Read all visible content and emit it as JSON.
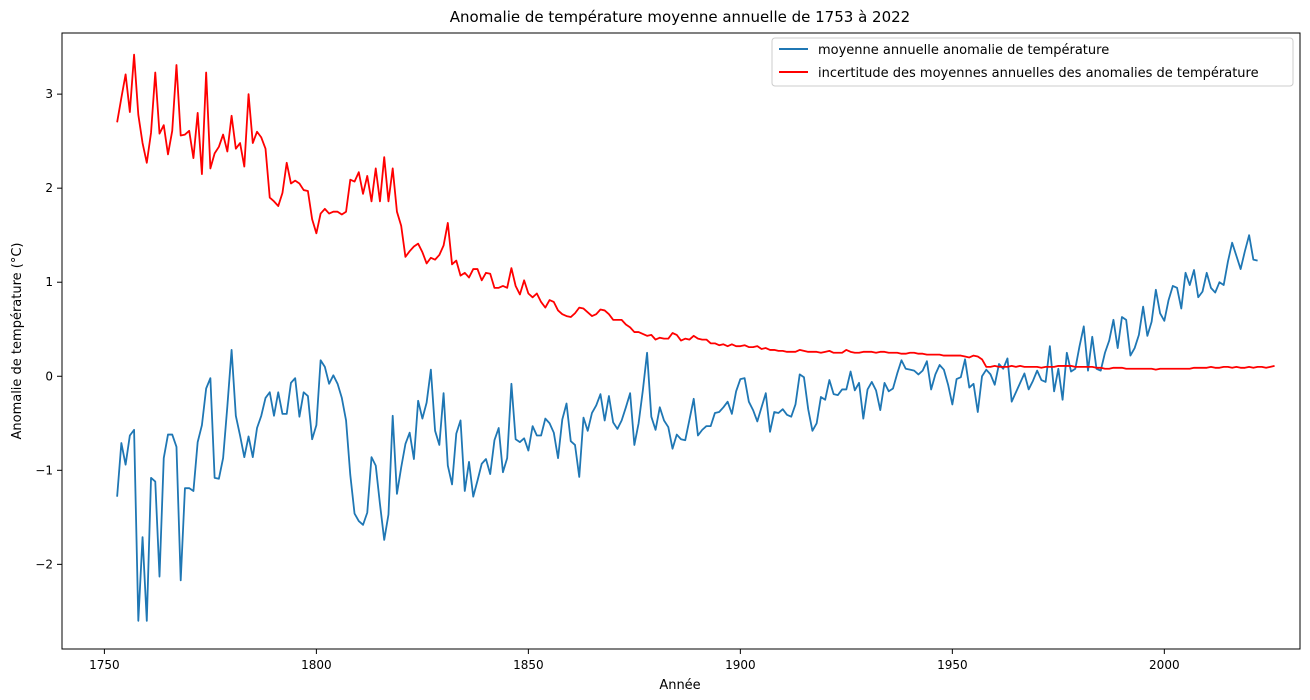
{
  "chart_data": {
    "type": "line",
    "title": "Anomalie de température moyenne annuelle de 1753 à 2022",
    "xlabel": "Année",
    "ylabel": "Anomalie de température (°C)",
    "xlim": [
      1740,
      2032
    ],
    "ylim": [
      -2.9,
      3.65
    ],
    "xticks": [
      1750,
      1800,
      1850,
      1900,
      1950,
      2000
    ],
    "yticks": [
      -2,
      -1,
      0,
      1,
      2,
      3
    ],
    "ytick_labels": [
      "−2",
      "−1",
      "0",
      "1",
      "2",
      "3"
    ],
    "grid": false,
    "legend_position": "top-right",
    "x_start": 1753,
    "series": [
      {
        "name": "moyenne annuelle anomalie de température",
        "color": "#1f77b4",
        "values": [
          -1.28,
          -0.71,
          -0.94,
          -0.63,
          -0.57,
          -2.6,
          -1.71,
          -2.6,
          -1.08,
          -1.12,
          -2.13,
          -0.87,
          -0.62,
          -0.62,
          -0.75,
          -2.17,
          -1.19,
          -1.19,
          -1.22,
          -0.7,
          -0.52,
          -0.13,
          -0.02,
          -1.08,
          -1.09,
          -0.87,
          -0.32,
          0.28,
          -0.42,
          -0.63,
          -0.86,
          -0.64,
          -0.86,
          -0.55,
          -0.42,
          -0.23,
          -0.17,
          -0.42,
          -0.17,
          -0.4,
          -0.4,
          -0.07,
          -0.02,
          -0.43,
          -0.17,
          -0.21,
          -0.67,
          -0.52,
          0.17,
          0.1,
          -0.08,
          0.01,
          -0.08,
          -0.23,
          -0.47,
          -1.05,
          -1.46,
          -1.54,
          -1.58,
          -1.45,
          -0.86,
          -0.95,
          -1.36,
          -1.74,
          -1.47,
          -0.42,
          -1.25,
          -0.97,
          -0.72,
          -0.6,
          -0.88,
          -0.26,
          -0.45,
          -0.28,
          0.07,
          -0.58,
          -0.73,
          -0.18,
          -0.95,
          -1.15,
          -0.61,
          -0.47,
          -1.22,
          -0.91,
          -1.28,
          -1.11,
          -0.93,
          -0.88,
          -1.04,
          -0.68,
          -0.55,
          -1.02,
          -0.87,
          -0.08,
          -0.67,
          -0.7,
          -0.66,
          -0.79,
          -0.53,
          -0.63,
          -0.63,
          -0.45,
          -0.5,
          -0.6,
          -0.87,
          -0.46,
          -0.29,
          -0.69,
          -0.73,
          -1.07,
          -0.44,
          -0.58,
          -0.39,
          -0.31,
          -0.19,
          -0.47,
          -0.21,
          -0.49,
          -0.56,
          -0.47,
          -0.33,
          -0.18,
          -0.73,
          -0.5,
          -0.15,
          0.25,
          -0.43,
          -0.57,
          -0.33,
          -0.47,
          -0.54,
          -0.77,
          -0.62,
          -0.67,
          -0.68,
          -0.46,
          -0.24,
          -0.63,
          -0.57,
          -0.53,
          -0.53,
          -0.39,
          -0.38,
          -0.33,
          -0.27,
          -0.4,
          -0.16,
          -0.03,
          -0.02,
          -0.27,
          -0.36,
          -0.48,
          -0.33,
          -0.18,
          -0.59,
          -0.38,
          -0.39,
          -0.35,
          -0.41,
          -0.43,
          -0.3,
          0.02,
          -0.01,
          -0.35,
          -0.58,
          -0.5,
          -0.22,
          -0.25,
          -0.04,
          -0.19,
          -0.2,
          -0.14,
          -0.14,
          0.05,
          -0.15,
          -0.07,
          -0.45,
          -0.14,
          -0.06,
          -0.15,
          -0.36,
          -0.07,
          -0.16,
          -0.13,
          0.03,
          0.17,
          0.08,
          0.07,
          0.06,
          0.02,
          0.06,
          0.16,
          -0.14,
          0.02,
          0.12,
          0.07,
          -0.09,
          -0.3,
          -0.03,
          -0.01,
          0.18,
          -0.12,
          -0.08,
          -0.38,
          0.0,
          0.07,
          0.02,
          -0.09,
          0.13,
          0.08,
          0.19,
          -0.27,
          -0.17,
          -0.07,
          0.03,
          -0.14,
          -0.05,
          0.06,
          -0.04,
          -0.06,
          0.32,
          -0.16,
          0.08,
          -0.25,
          0.25,
          0.05,
          0.08,
          0.32,
          0.53,
          0.06,
          0.42,
          0.08,
          0.06,
          0.25,
          0.38,
          0.6,
          0.3,
          0.63,
          0.6,
          0.22,
          0.3,
          0.44,
          0.74,
          0.43,
          0.58,
          0.92,
          0.67,
          0.59,
          0.81,
          0.96,
          0.94,
          0.72,
          1.1,
          0.97,
          1.13,
          0.84,
          0.9,
          1.1,
          0.94,
          0.89,
          1.0,
          0.97,
          1.22,
          1.42,
          1.28,
          1.14,
          1.33,
          1.5,
          1.24,
          1.23
        ]
      },
      {
        "name": "incertitude des moyennes annuelles des anomalies de température",
        "color": "#ff0000",
        "values": [
          2.7,
          2.96,
          3.21,
          2.81,
          3.42,
          2.78,
          2.48,
          2.27,
          2.59,
          3.23,
          2.58,
          2.67,
          2.36,
          2.61,
          3.31,
          2.56,
          2.57,
          2.61,
          2.32,
          2.8,
          2.15,
          3.23,
          2.21,
          2.37,
          2.44,
          2.57,
          2.39,
          2.77,
          2.42,
          2.48,
          2.23,
          3.0,
          2.48,
          2.6,
          2.54,
          2.42,
          1.9,
          1.86,
          1.81,
          1.95,
          2.27,
          2.05,
          2.08,
          2.05,
          1.98,
          1.97,
          1.67,
          1.52,
          1.73,
          1.78,
          1.73,
          1.75,
          1.75,
          1.72,
          1.75,
          2.09,
          2.07,
          2.17,
          1.94,
          2.13,
          1.86,
          2.21,
          1.86,
          2.33,
          1.86,
          2.21,
          1.75,
          1.6,
          1.27,
          1.33,
          1.38,
          1.41,
          1.32,
          1.2,
          1.26,
          1.24,
          1.29,
          1.39,
          1.63,
          1.19,
          1.23,
          1.07,
          1.1,
          1.05,
          1.14,
          1.14,
          1.02,
          1.1,
          1.09,
          0.94,
          0.94,
          0.96,
          0.94,
          1.15,
          0.96,
          0.87,
          1.02,
          0.88,
          0.84,
          0.88,
          0.79,
          0.73,
          0.81,
          0.79,
          0.7,
          0.66,
          0.64,
          0.63,
          0.67,
          0.73,
          0.72,
          0.68,
          0.64,
          0.66,
          0.71,
          0.7,
          0.66,
          0.6,
          0.6,
          0.6,
          0.55,
          0.52,
          0.47,
          0.47,
          0.45,
          0.43,
          0.44,
          0.39,
          0.41,
          0.4,
          0.4,
          0.46,
          0.44,
          0.38,
          0.4,
          0.39,
          0.43,
          0.4,
          0.39,
          0.39,
          0.35,
          0.35,
          0.33,
          0.34,
          0.32,
          0.34,
          0.32,
          0.32,
          0.33,
          0.31,
          0.31,
          0.32,
          0.29,
          0.3,
          0.28,
          0.28,
          0.27,
          0.27,
          0.26,
          0.26,
          0.26,
          0.28,
          0.27,
          0.26,
          0.26,
          0.26,
          0.25,
          0.26,
          0.27,
          0.25,
          0.25,
          0.25,
          0.28,
          0.26,
          0.25,
          0.25,
          0.26,
          0.26,
          0.26,
          0.25,
          0.26,
          0.26,
          0.25,
          0.25,
          0.25,
          0.24,
          0.24,
          0.25,
          0.25,
          0.24,
          0.24,
          0.23,
          0.23,
          0.23,
          0.23,
          0.22,
          0.22,
          0.22,
          0.22,
          0.22,
          0.21,
          0.2,
          0.22,
          0.21,
          0.18,
          0.1,
          0.1,
          0.11,
          0.1,
          0.1,
          0.1,
          0.11,
          0.1,
          0.11,
          0.1,
          0.1,
          0.1,
          0.1,
          0.09,
          0.1,
          0.1,
          0.1,
          0.11,
          0.11,
          0.11,
          0.11,
          0.1,
          0.1,
          0.1,
          0.1,
          0.1,
          0.09,
          0.09,
          0.08,
          0.08,
          0.09,
          0.09,
          0.09,
          0.08,
          0.08,
          0.08,
          0.08,
          0.08,
          0.08,
          0.08,
          0.07,
          0.08,
          0.08,
          0.08,
          0.08,
          0.08,
          0.08,
          0.08,
          0.08,
          0.09,
          0.09,
          0.09,
          0.09,
          0.1,
          0.09,
          0.09,
          0.1,
          0.1,
          0.09,
          0.1,
          0.09,
          0.09,
          0.1,
          0.09,
          0.1,
          0.1,
          0.09,
          0.1,
          0.11
        ]
      }
    ]
  }
}
